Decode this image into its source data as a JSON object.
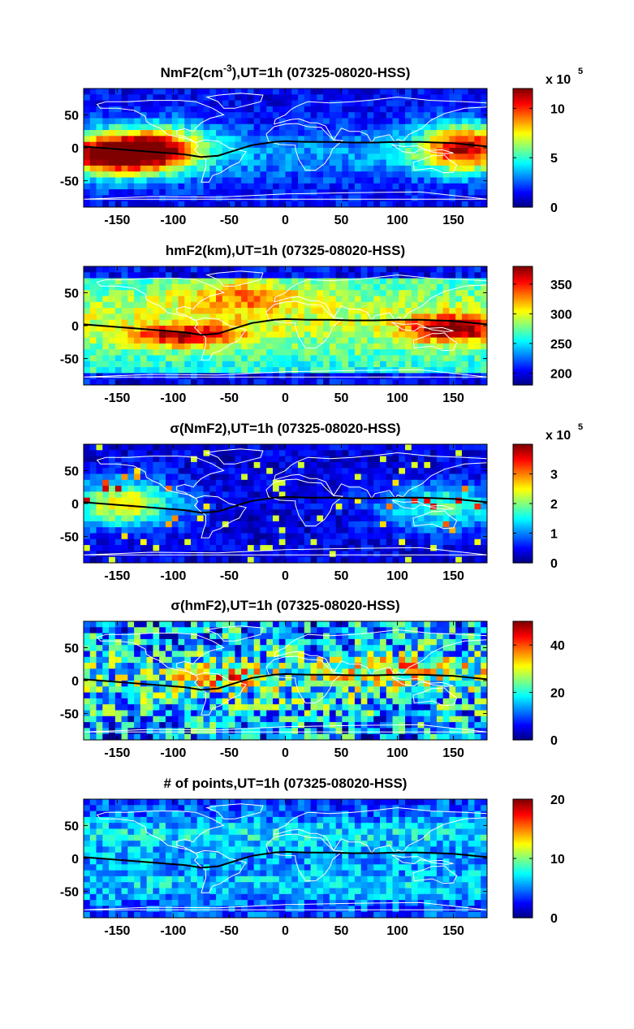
{
  "colormap": "jet",
  "x_ticks": [
    "-150",
    "-100",
    "-50",
    "0",
    "50",
    "100",
    "150"
  ],
  "x_tick_values": [
    -150,
    -100,
    -50,
    0,
    50,
    100,
    150
  ],
  "y_ticks": [
    "50",
    "0",
    "-50"
  ],
  "y_tick_values": [
    50,
    0,
    -50
  ],
  "xlim": [
    -180,
    180
  ],
  "ylim": [
    -90,
    90
  ],
  "chart_data": [
    {
      "type": "heatmap",
      "title_parts": [
        "NmF2(cm",
        "-3",
        "),UT=1h (07325-08020-HSS)"
      ],
      "clim": [
        0,
        12
      ],
      "colorbar_ticks": [
        "0",
        "5",
        "10"
      ],
      "colorbar_tick_values": [
        0,
        5,
        10
      ],
      "colorbar_multiplier": [
        "x 10",
        "5"
      ],
      "pattern": "nmf2"
    },
    {
      "type": "heatmap",
      "title_parts": [
        "hmF2(km),UT=1h (07325-08020-HSS)"
      ],
      "clim": [
        180,
        380
      ],
      "colorbar_ticks": [
        "200",
        "250",
        "300",
        "350"
      ],
      "colorbar_tick_values": [
        200,
        250,
        300,
        350
      ],
      "colorbar_multiplier": null,
      "pattern": "hmf2"
    },
    {
      "type": "heatmap",
      "title_parts": [
        "σ(NmF2),UT=1h (07325-08020-HSS)"
      ],
      "clim": [
        0,
        4
      ],
      "colorbar_ticks": [
        "0",
        "1",
        "2",
        "3"
      ],
      "colorbar_tick_values": [
        0,
        1,
        2,
        3
      ],
      "colorbar_multiplier": [
        "x 10",
        "5"
      ],
      "pattern": "signmf2"
    },
    {
      "type": "heatmap",
      "title_parts": [
        "σ(hmF2),UT=1h (07325-08020-HSS)"
      ],
      "clim": [
        0,
        50
      ],
      "colorbar_ticks": [
        "0",
        "20",
        "40"
      ],
      "colorbar_tick_values": [
        0,
        20,
        40
      ],
      "colorbar_multiplier": null,
      "pattern": "sighmf2"
    },
    {
      "type": "heatmap",
      "title_parts": [
        "# of points,UT=1h (07325-08020-HSS)"
      ],
      "clim": [
        0,
        20
      ],
      "colorbar_ticks": [
        "0",
        "10",
        "20"
      ],
      "colorbar_tick_values": [
        0,
        10,
        20
      ],
      "colorbar_multiplier": null,
      "pattern": "npoints"
    }
  ]
}
